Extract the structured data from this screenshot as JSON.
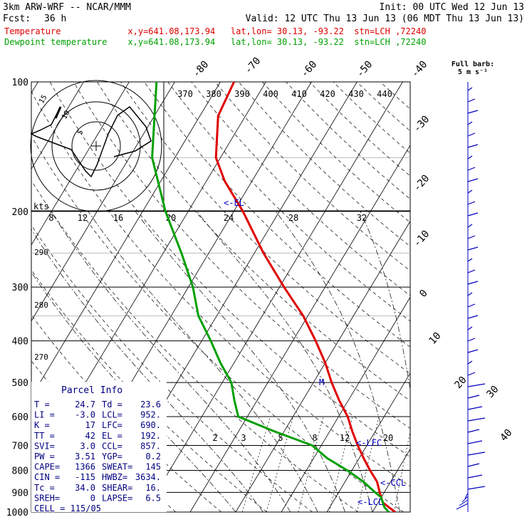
{
  "header": {
    "model": "3km ARW-WRF -- NCAR/MMM",
    "init": "Init: 00 UTC Wed 12 Jun 13",
    "fcst_label": "Fcst:",
    "fcst_value": "36 h",
    "valid": "Valid: 12 UTC Thu 13 Jun 13 (06 MDT Thu 13 Jun 13)",
    "temp_line": "Temperature             x,y=641.08,173.94   lat,lon= 30.13, -93.22  stn=LCH ,72240",
    "dew_line": "Dewpoint temperature    x,y=641.08,173.94   lat,lon= 30.13, -93.22  stn=LCH ,72240"
  },
  "colors": {
    "temperature": "#e00000",
    "dewpoint": "#00a000",
    "barbs": "#0000c0",
    "parcel_text": "#000080"
  },
  "barb_legend": {
    "line1": "Full barb:",
    "line2": "5 m s⁻¹"
  },
  "chart_data": {
    "type": "line",
    "subtype": "skew-T log-P sounding",
    "y_axis": "pressure (hPa), log scale",
    "ylim": [
      1000,
      100
    ],
    "pressure_ticks": [
      100,
      200,
      300,
      400,
      500,
      600,
      700,
      800,
      900,
      1000
    ],
    "isotherm_labels": [
      "-80",
      "-70",
      "-60",
      "-50",
      "-40",
      "-30",
      "-20",
      "-10",
      "0",
      "10",
      "20",
      "30",
      "40"
    ],
    "potential_temp_labels": [
      "370",
      "380",
      "390",
      "400",
      "410",
      "420",
      "430",
      "440"
    ],
    "theta_e_left_labels": [
      "290",
      "280",
      "270"
    ],
    "mixing_ratio_labels": [
      "2",
      "3",
      "5",
      "8",
      "12",
      "20"
    ],
    "hodograph_labels": [
      "kts",
      "8",
      "12",
      "16",
      "20",
      "24",
      "28",
      "32"
    ],
    "series": [
      {
        "name": "Temperature",
        "points": [
          [
            1000,
            25
          ],
          [
            975,
            23
          ],
          [
            950,
            21
          ],
          [
            925,
            20
          ],
          [
            900,
            19
          ],
          [
            850,
            17
          ],
          [
            800,
            14
          ],
          [
            750,
            11
          ],
          [
            700,
            8
          ],
          [
            650,
            5
          ],
          [
            600,
            2
          ],
          [
            550,
            -2
          ],
          [
            500,
            -6
          ],
          [
            450,
            -10
          ],
          [
            400,
            -15
          ],
          [
            350,
            -21
          ],
          [
            300,
            -29
          ],
          [
            250,
            -38
          ],
          [
            200,
            -48
          ],
          [
            170,
            -56
          ],
          [
            150,
            -61
          ],
          [
            120,
            -66
          ],
          [
            100,
            -67
          ]
        ]
      },
      {
        "name": "Dewpoint temperature",
        "points": [
          [
            1000,
            23.6
          ],
          [
            975,
            22
          ],
          [
            950,
            21
          ],
          [
            925,
            20
          ],
          [
            900,
            18
          ],
          [
            850,
            14
          ],
          [
            800,
            9
          ],
          [
            750,
            3
          ],
          [
            700,
            -2
          ],
          [
            650,
            -12
          ],
          [
            600,
            -22
          ],
          [
            550,
            -25
          ],
          [
            500,
            -28
          ],
          [
            450,
            -33
          ],
          [
            400,
            -38
          ],
          [
            350,
            -44
          ],
          [
            300,
            -49
          ],
          [
            250,
            -56
          ],
          [
            200,
            -65
          ],
          [
            150,
            -75
          ],
          [
            100,
            -84
          ]
        ]
      }
    ],
    "annotations": [
      "<-EL",
      "<-LFC",
      "<-CCL",
      "<-LCL",
      "M"
    ],
    "parcel_info": {
      "title": "Parcel Info",
      "rows": [
        [
          "T  =",
          "24.7",
          "Td =",
          "23.6"
        ],
        [
          "LI =",
          "-3.0",
          "LCL=",
          "952."
        ],
        [
          "K  =",
          "17",
          "LFC=",
          "690."
        ],
        [
          "TT =",
          "42",
          "EL =",
          "192."
        ],
        [
          "SVI=",
          "3.0",
          "CCL=",
          "857."
        ],
        [
          "PW =",
          "3.51",
          "YGP=",
          "0.2"
        ],
        [
          "CAPE=",
          "1366",
          "SWEAT=",
          "145"
        ],
        [
          "CIN =",
          "-115",
          "HWBZ=",
          "3634."
        ],
        [
          "Tc =",
          "34.0",
          "SHEAR=",
          "16."
        ],
        [
          "SREH=",
          "0",
          "LAPSE=",
          "6.5"
        ]
      ],
      "cell": "CELL = 115/05"
    }
  }
}
